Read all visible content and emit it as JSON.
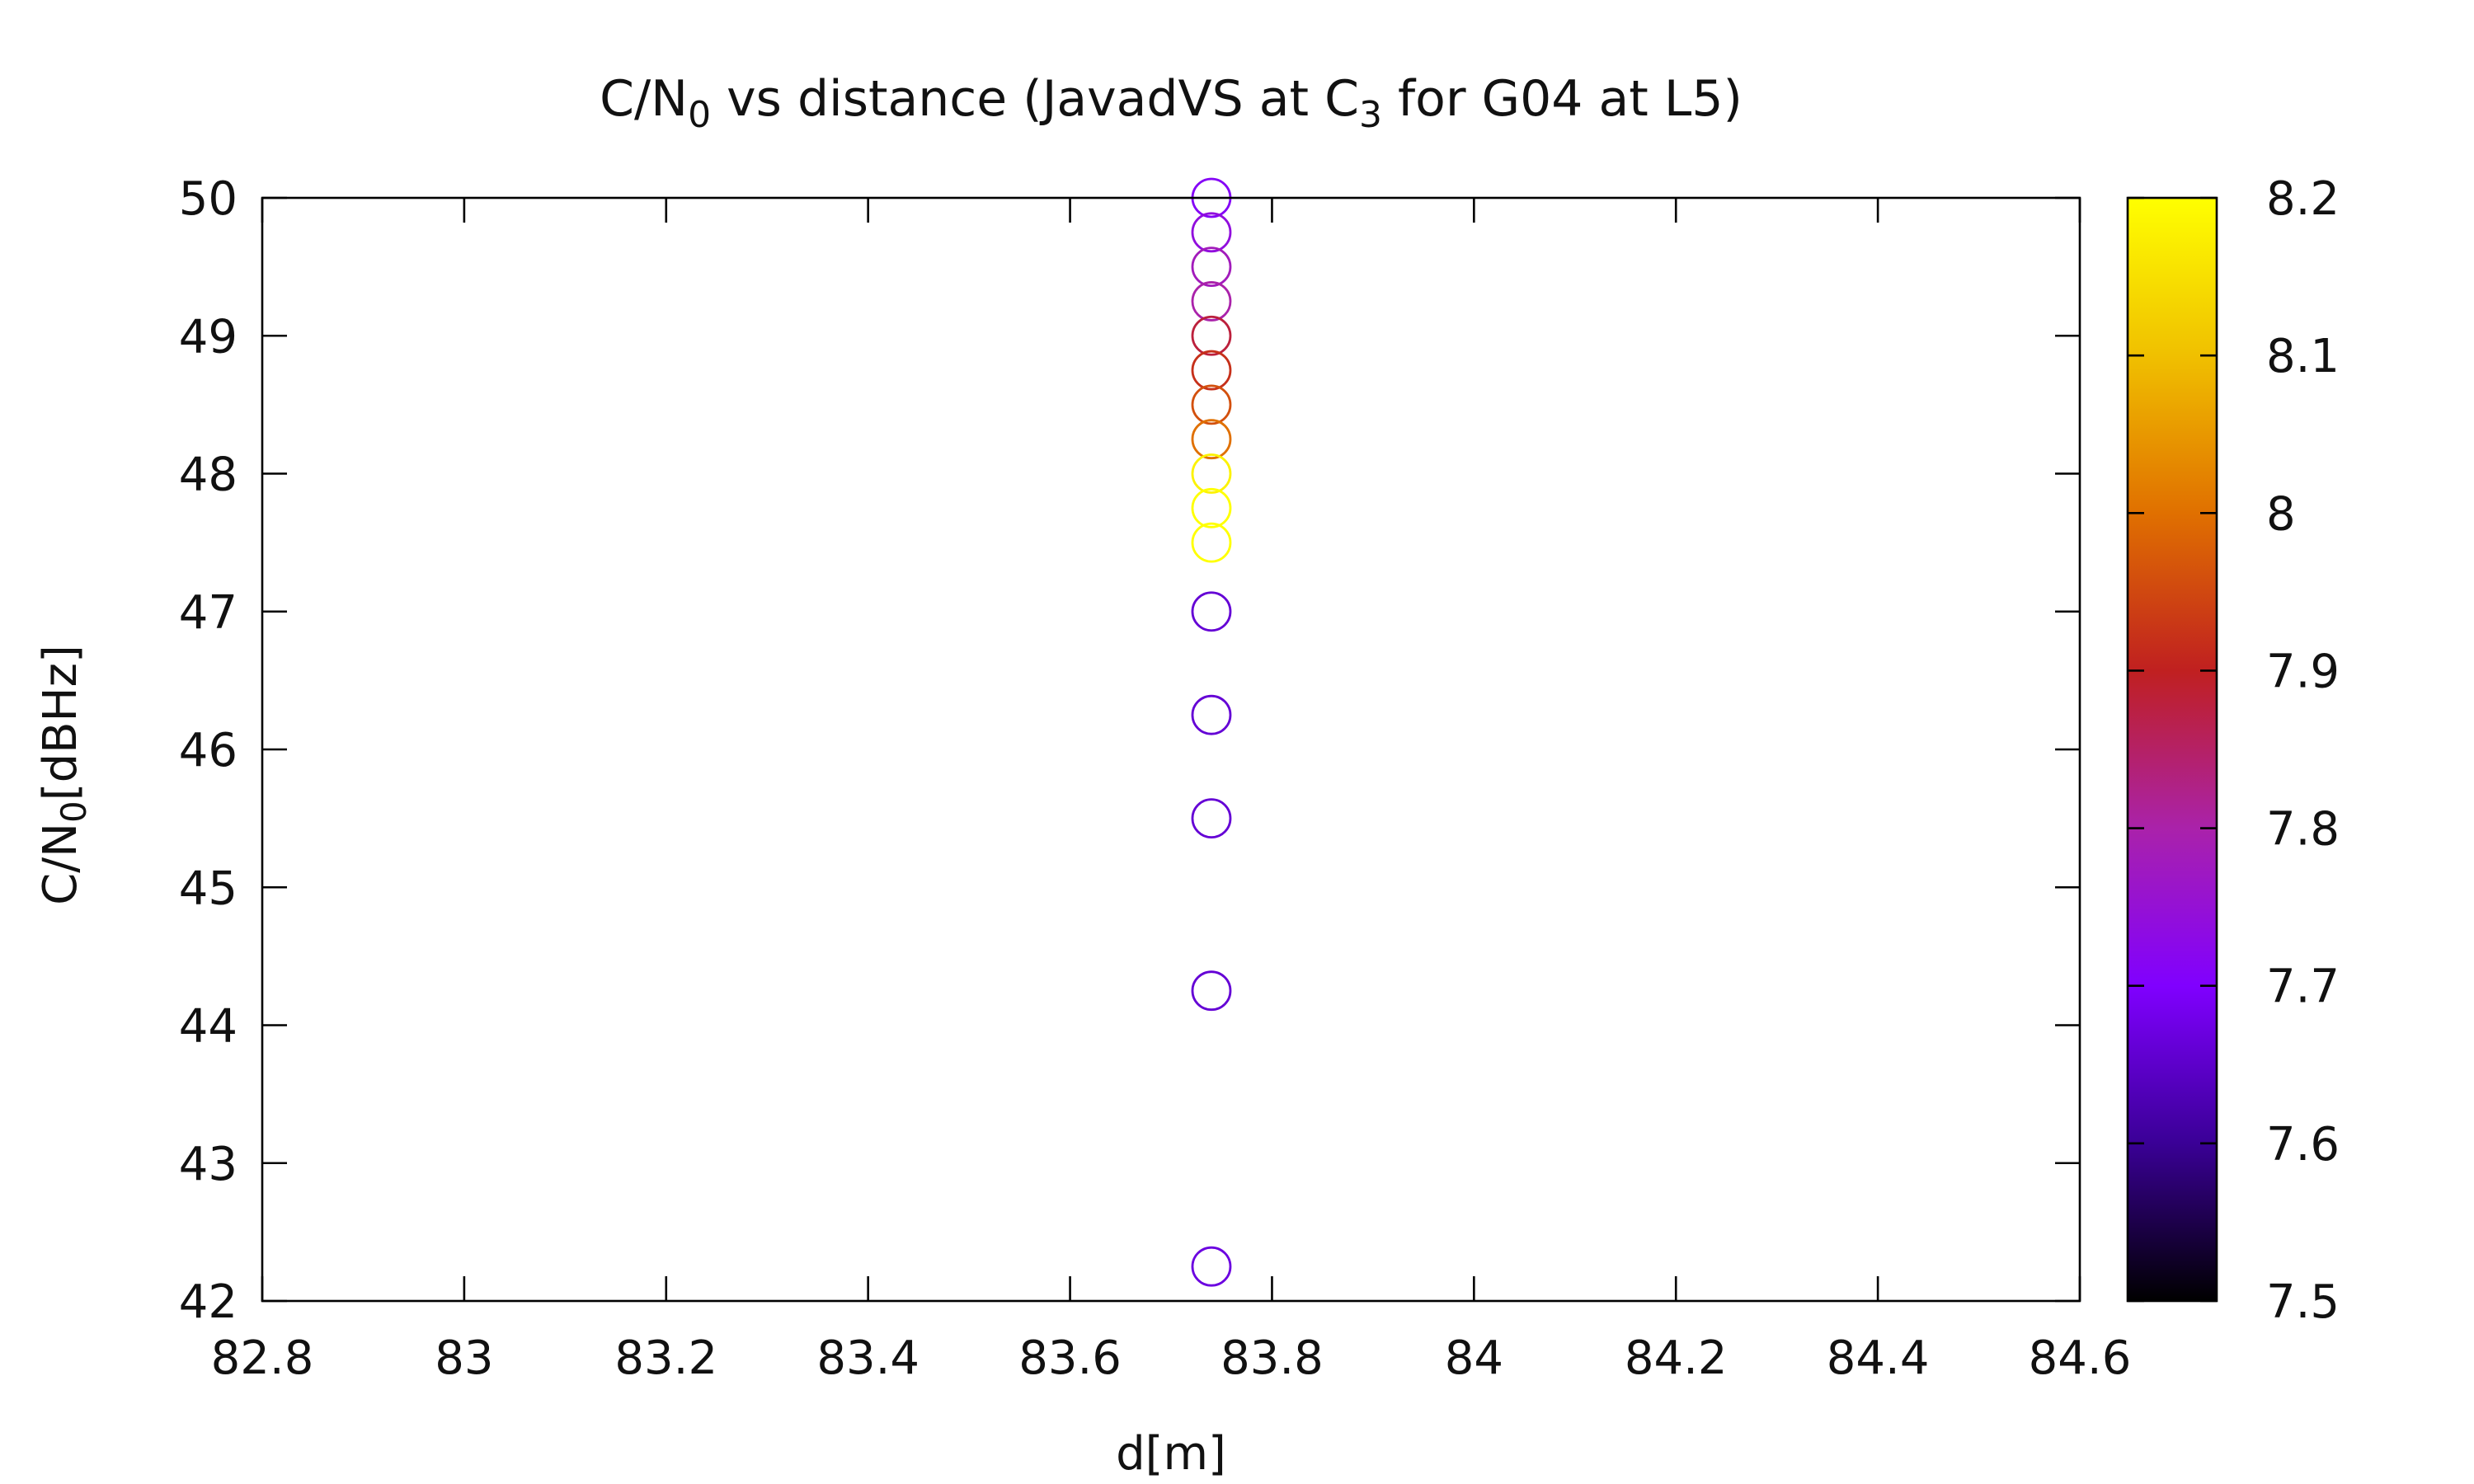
{
  "chart_data": {
    "type": "scatter",
    "title": {
      "prefix": "C/N",
      "sub1": "0",
      "middle": " vs distance (JavadVS at C",
      "sub2": "3",
      "suffix": " for G04 at L5)"
    },
    "xlabel": "d[m]",
    "ylabel": {
      "prefix": "C/N",
      "sub": "0",
      "suffix": "[dBHz]"
    },
    "xlim": [
      82.8,
      84.6
    ],
    "ylim": [
      42,
      50
    ],
    "xticks": [
      "82.8",
      "83",
      "83.2",
      "83.4",
      "83.6",
      "83.8",
      "84",
      "84.2",
      "84.4",
      "84.6"
    ],
    "yticks": [
      "42",
      "43",
      "44",
      "45",
      "46",
      "47",
      "48",
      "49",
      "50"
    ],
    "colorbar": {
      "range": [
        7.5,
        8.2
      ],
      "ticks": [
        "7.5",
        "7.6",
        "7.7",
        "7.8",
        "7.9",
        "8",
        "8.1",
        "8.2"
      ],
      "palette": [
        "#000000",
        "#3a0096",
        "#8000ff",
        "#aa22aa",
        "#c02020",
        "#e07000",
        "#f0c000",
        "#ffff00"
      ]
    },
    "grid": false,
    "marker": "open-circle",
    "points": [
      {
        "x": 83.74,
        "y": 50.0,
        "c": 7.71
      },
      {
        "x": 83.74,
        "y": 49.75,
        "c": 7.74
      },
      {
        "x": 83.74,
        "y": 49.5,
        "c": 7.78
      },
      {
        "x": 83.74,
        "y": 49.25,
        "c": 7.8
      },
      {
        "x": 83.74,
        "y": 49.0,
        "c": 7.88
      },
      {
        "x": 83.74,
        "y": 48.75,
        "c": 7.92
      },
      {
        "x": 83.74,
        "y": 48.5,
        "c": 7.96
      },
      {
        "x": 83.74,
        "y": 48.25,
        "c": 8.0
      },
      {
        "x": 83.74,
        "y": 48.0,
        "c": 8.18
      },
      {
        "x": 83.74,
        "y": 47.75,
        "c": 8.2
      },
      {
        "x": 83.74,
        "y": 47.5,
        "c": 8.2
      },
      {
        "x": 83.74,
        "y": 47.0,
        "c": 7.66
      },
      {
        "x": 83.74,
        "y": 46.25,
        "c": 7.66
      },
      {
        "x": 83.74,
        "y": 45.5,
        "c": 7.66
      },
      {
        "x": 83.74,
        "y": 44.25,
        "c": 7.66
      },
      {
        "x": 83.74,
        "y": 42.25,
        "c": 7.67
      }
    ]
  }
}
